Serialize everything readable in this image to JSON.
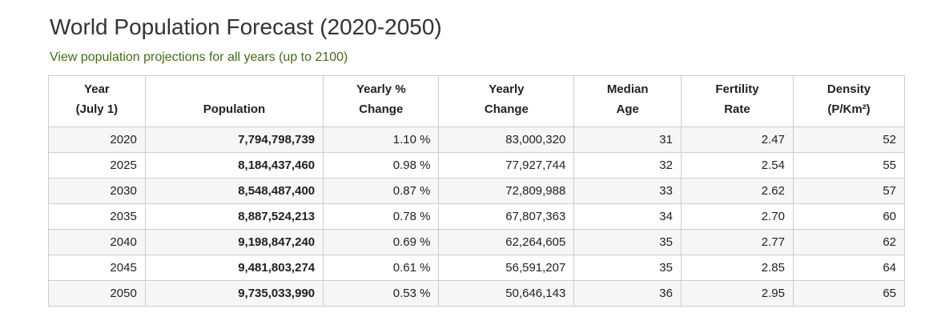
{
  "page": {
    "title": "World Population Forecast (2020-2050)",
    "link_text": "View population projections for all years (up to 2100)"
  },
  "colors": {
    "link_green": "#3e700e",
    "title_gray": "#333333",
    "table_border": "#cccccc",
    "row_stripe": "#f6f6f6"
  },
  "table": {
    "columns": [
      {
        "id": "year",
        "line1": "Year",
        "line2": "(July 1)"
      },
      {
        "id": "population",
        "line1": "",
        "line2": "Population"
      },
      {
        "id": "yearly_pct_change",
        "line1": "Yearly %",
        "line2": "Change"
      },
      {
        "id": "yearly_change",
        "line1": "Yearly",
        "line2": "Change"
      },
      {
        "id": "median_age",
        "line1": "Median",
        "line2": "Age"
      },
      {
        "id": "fertility_rate",
        "line1": "Fertility",
        "line2": "Rate"
      },
      {
        "id": "density",
        "line1": "Density",
        "line2": "(P/Km²)"
      }
    ],
    "rows": [
      {
        "year": "2020",
        "population": "7,794,798,739",
        "yearly_pct_change": "1.10 %",
        "yearly_change": "83,000,320",
        "median_age": "31",
        "fertility_rate": "2.47",
        "density": "52"
      },
      {
        "year": "2025",
        "population": "8,184,437,460",
        "yearly_pct_change": "0.98 %",
        "yearly_change": "77,927,744",
        "median_age": "32",
        "fertility_rate": "2.54",
        "density": "55"
      },
      {
        "year": "2030",
        "population": "8,548,487,400",
        "yearly_pct_change": "0.87 %",
        "yearly_change": "72,809,988",
        "median_age": "33",
        "fertility_rate": "2.62",
        "density": "57"
      },
      {
        "year": "2035",
        "population": "8,887,524,213",
        "yearly_pct_change": "0.78 %",
        "yearly_change": "67,807,363",
        "median_age": "34",
        "fertility_rate": "2.70",
        "density": "60"
      },
      {
        "year": "2040",
        "population": "9,198,847,240",
        "yearly_pct_change": "0.69 %",
        "yearly_change": "62,264,605",
        "median_age": "35",
        "fertility_rate": "2.77",
        "density": "62"
      },
      {
        "year": "2045",
        "population": "9,481,803,274",
        "yearly_pct_change": "0.61 %",
        "yearly_change": "56,591,207",
        "median_age": "35",
        "fertility_rate": "2.85",
        "density": "64"
      },
      {
        "year": "2050",
        "population": "9,735,033,990",
        "yearly_pct_change": "0.53 %",
        "yearly_change": "50,646,143",
        "median_age": "36",
        "fertility_rate": "2.95",
        "density": "65"
      }
    ]
  }
}
